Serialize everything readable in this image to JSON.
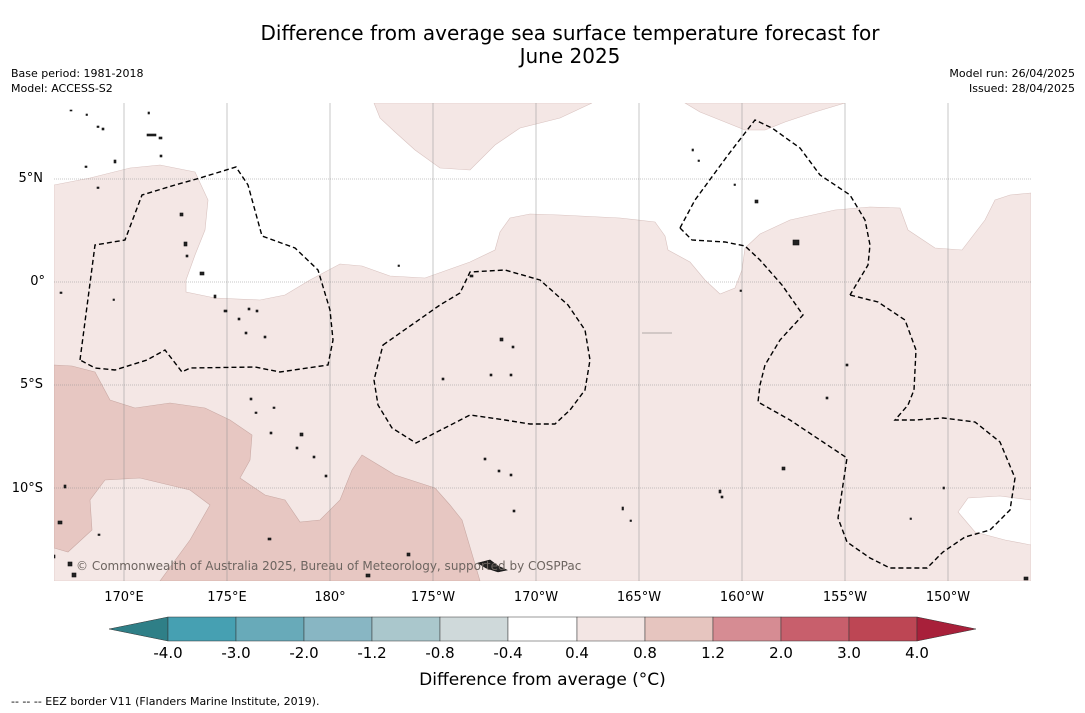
{
  "title": {
    "line1": "Difference from average sea surface temperature forecast for",
    "line2": "June 2025"
  },
  "meta_left": {
    "base_period": "Base period: 1981-2018",
    "model": "Model: ACCESS-S2"
  },
  "meta_right": {
    "model_run": "Model run: 26/04/2025",
    "issued": "Issued: 28/04/2025"
  },
  "lat_labels": [
    "5°N",
    "0°",
    "5°S",
    "10°S"
  ],
  "lon_labels": [
    "170°E",
    "175°E",
    "180°",
    "175°W",
    "170°W",
    "165°W",
    "160°W",
    "155°W",
    "150°W"
  ],
  "copyright": "© Commonwealth of Australia 2025, Bureau of Meteorology, supported by COSPPac",
  "colorbar": {
    "ticks": [
      "-4.0",
      "-3.0",
      "-2.0",
      "-1.2",
      "-0.8",
      "-0.4",
      "0.4",
      "0.8",
      "1.2",
      "2.0",
      "3.0",
      "4.0"
    ],
    "colors": [
      "#2f7f87",
      "#46a0b2",
      "#68aab9",
      "#88b6c3",
      "#aac7cc",
      "#cfd9da",
      "#ffffff",
      "#f3e6e4",
      "#e6c5bf",
      "#d68c93",
      "#c85f6c",
      "#bd4654",
      "#a8203a"
    ],
    "title": "Difference from average (°C)"
  },
  "legend_note": "--  --  -- EEZ border V11 (Flanders Marine Institute, 2019).",
  "map_colors": {
    "light": "#f4e7e5",
    "medium": "#e7c7c2",
    "coast": "#111111"
  }
}
